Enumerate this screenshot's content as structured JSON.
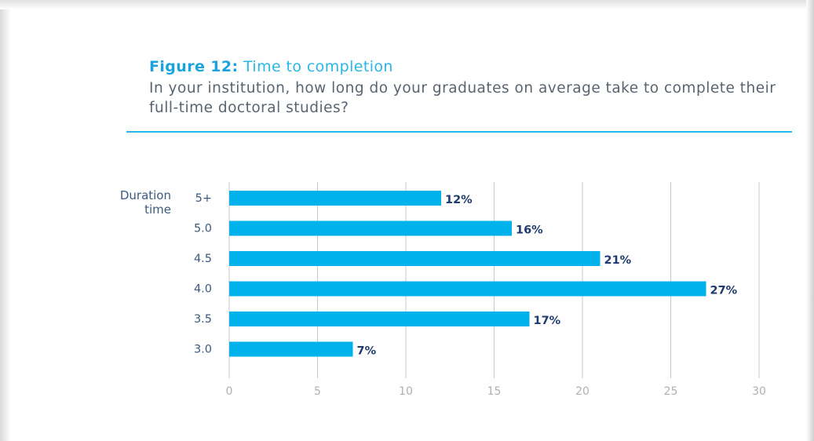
{
  "figure": {
    "label": "Figure 12:",
    "title": "Time to completion",
    "subtitle": "In your institution, how long do your graduates on average take to complete their full-time doctoral studies?"
  },
  "colors": {
    "bar": "#00b2ec",
    "accent": "#29b6e8",
    "value_label": "#1f3a6e",
    "category_label": "#3d5a80",
    "grid": "#c8c8c8",
    "tick": "#b0b0b0"
  },
  "chart_data": {
    "type": "bar",
    "orientation": "horizontal",
    "ylabel": "Duration time",
    "xlabel": "",
    "categories": [
      "5+",
      "5.0",
      "4.5",
      "4.0",
      "3.5",
      "3.0"
    ],
    "values": [
      12,
      16,
      21,
      27,
      17,
      7
    ],
    "data_labels": [
      "12%",
      "16%",
      "21%",
      "27%",
      "17%",
      "7%"
    ],
    "xlim": [
      0,
      30
    ],
    "xticks": [
      0,
      5,
      10,
      15,
      20,
      25,
      30
    ],
    "grid": true,
    "legend": "none"
  }
}
